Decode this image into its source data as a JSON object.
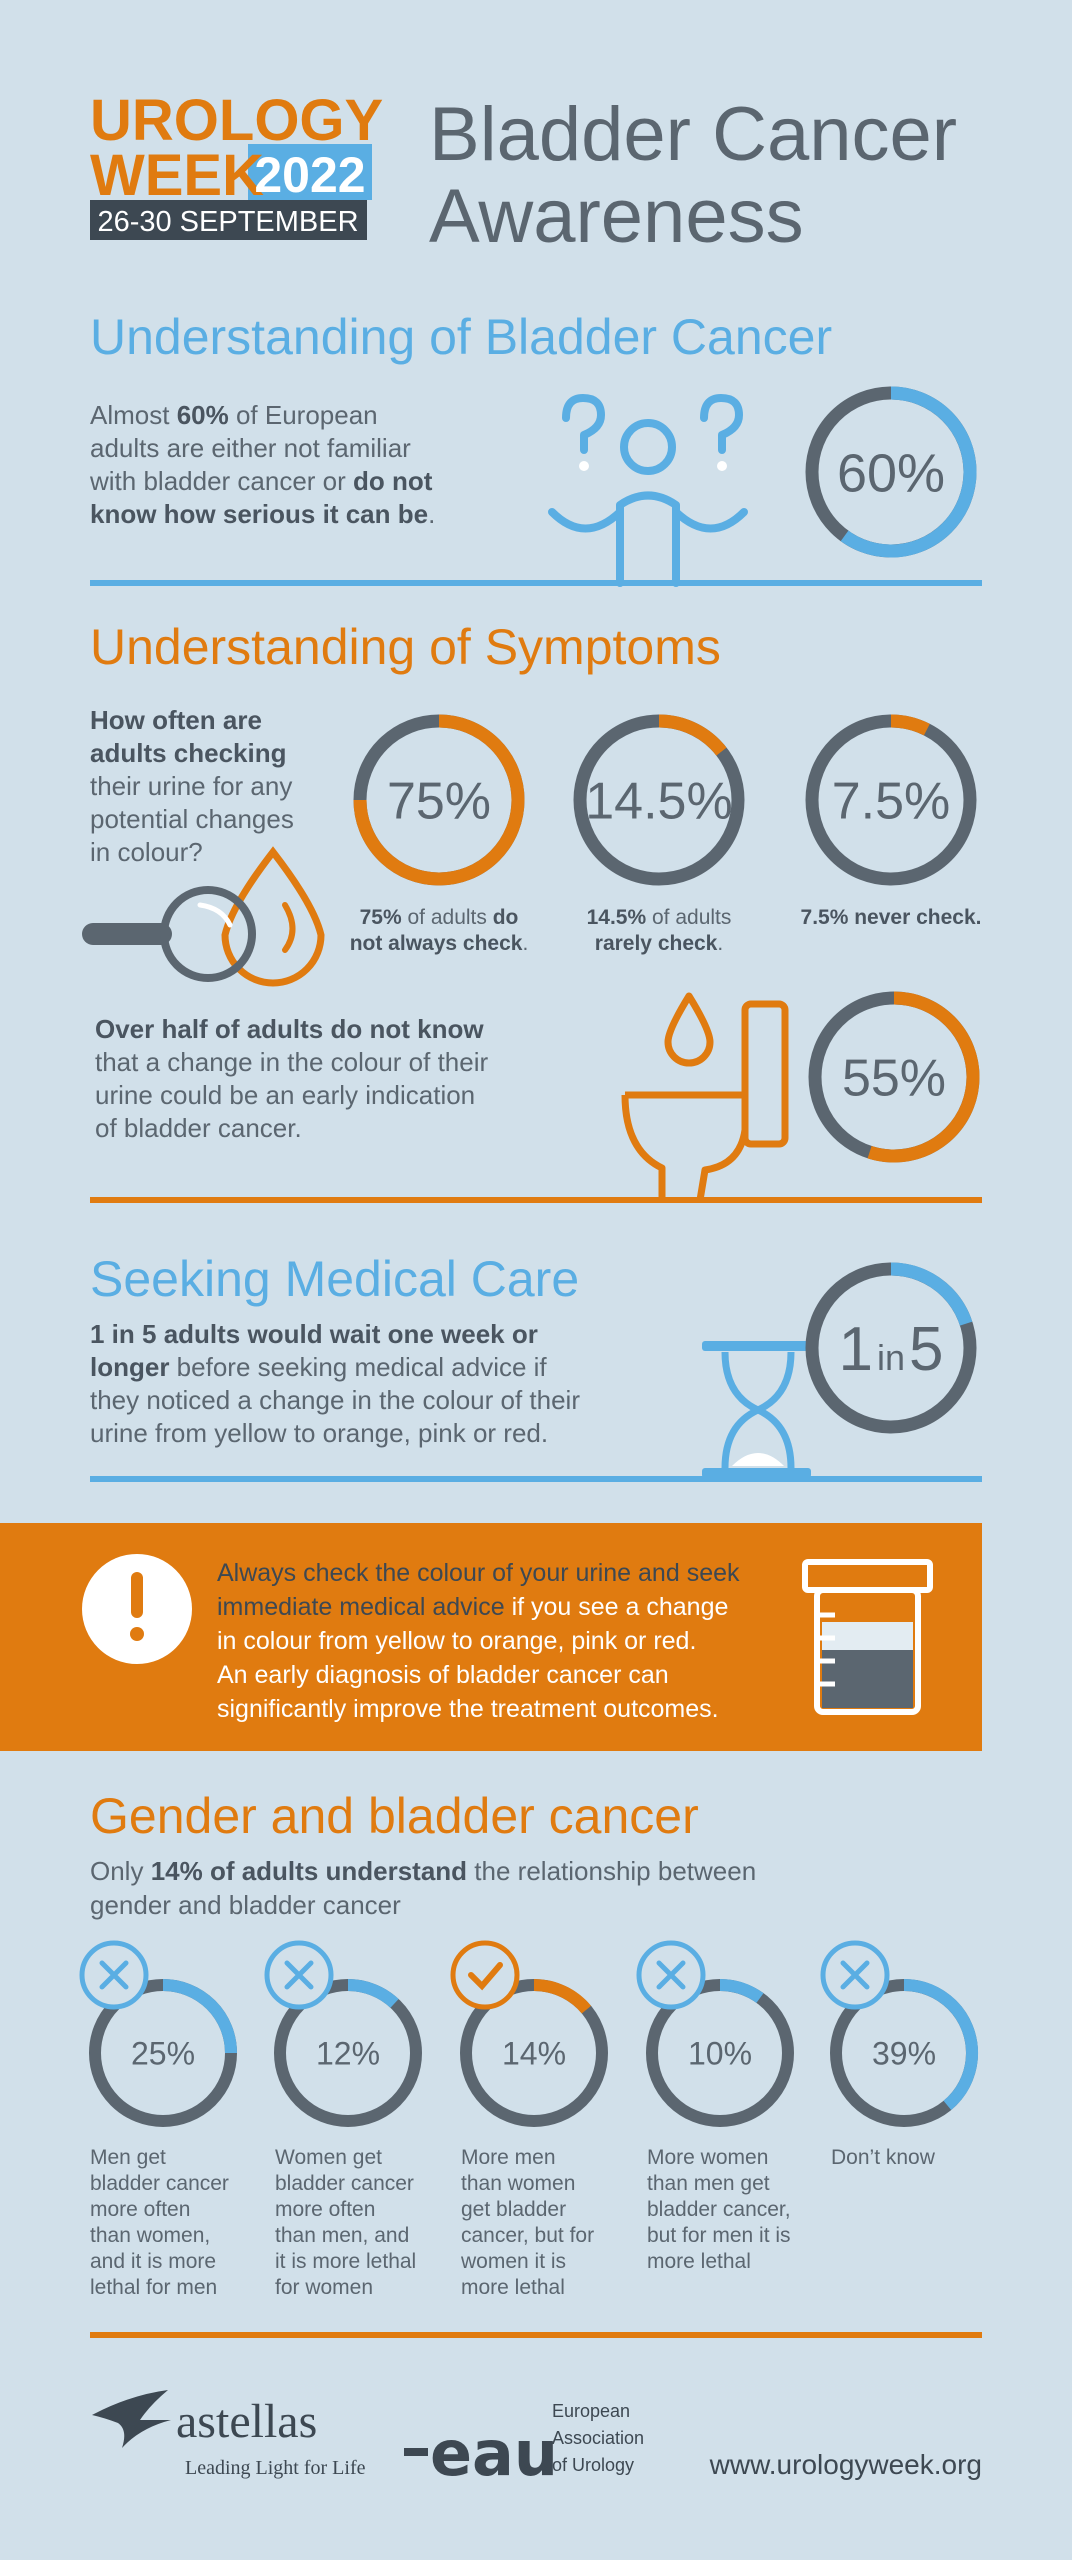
{
  "header": {
    "brand_line1": "UROLOGY",
    "brand_line2": "WEEK",
    "year": "2022",
    "dates": "26-30 SEPTEMBER",
    "title_lines": [
      "Bladder Cancer",
      "Awareness"
    ]
  },
  "understanding": {
    "heading": "Understanding of Bladder Cancer",
    "paragraph": [
      [
        {
          "text": "Almost "
        },
        {
          "text": "60%",
          "bold": true
        },
        {
          "text": " of European"
        }
      ],
      [
        {
          "text": "adults are either not familiar"
        }
      ],
      [
        {
          "text": "with bladder cancer or "
        },
        {
          "text": "do not",
          "bold": true
        }
      ],
      [
        {
          "text": "know how serious it can be",
          "bold": true
        },
        {
          "text": "."
        }
      ]
    ],
    "ring": {
      "value": 60,
      "label": "60%",
      "color": "#5aaee3"
    }
  },
  "symptoms": {
    "heading": "Understanding of Symptoms",
    "question": [
      [
        {
          "text": "How often are",
          "bold": true
        }
      ],
      [
        {
          "text": "adults checking",
          "bold": true
        }
      ],
      [
        {
          "text": "their urine for any"
        }
      ],
      [
        {
          "text": "potential changes"
        }
      ],
      [
        {
          "text": "in colour?"
        }
      ]
    ],
    "rings": [
      {
        "value": 75,
        "label": "75%",
        "color": "#e07b10",
        "caption": [
          [
            {
              "text": "75%",
              "bold": true
            },
            {
              "text": " of adults "
            },
            {
              "text": "do",
              "bold": true
            }
          ],
          [
            {
              "text": "not always check",
              "bold": true
            },
            {
              "text": "."
            }
          ]
        ]
      },
      {
        "value": 14.5,
        "label": "14.5%",
        "color": "#e07b10",
        "caption": [
          [
            {
              "text": "14.5%",
              "bold": true
            },
            {
              "text": " of adults"
            }
          ],
          [
            {
              "text": "rarely check",
              "bold": true
            },
            {
              "text": "."
            }
          ]
        ]
      },
      {
        "value": 7.5,
        "label": "7.5%",
        "color": "#e07b10",
        "caption": [
          [
            {
              "text": "7.5% never check.",
              "bold": true
            }
          ]
        ]
      }
    ],
    "paragraph": [
      [
        {
          "text": "Over half of adults do not know",
          "bold": true
        }
      ],
      [
        {
          "text": "that a change in the colour of their"
        }
      ],
      [
        {
          "text": "urine could be an early indication"
        }
      ],
      [
        {
          "text": "of bladder cancer."
        }
      ]
    ],
    "ring": {
      "value": 55,
      "label": "55%",
      "color": "#e07b10"
    }
  },
  "medical_care": {
    "heading": "Seeking Medical Care",
    "paragraph": [
      [
        {
          "text": "1 in 5 adults would wait one week or",
          "bold": true
        }
      ],
      [
        {
          "text": "longer",
          "bold": true
        },
        {
          "text": " before seeking medical advice if"
        }
      ],
      [
        {
          "text": "they noticed a change in the colour of their"
        }
      ],
      [
        {
          "text": "urine from yellow to orange, pink or red."
        }
      ]
    ],
    "ring": {
      "count": 1,
      "word": "in",
      "total": 5,
      "color": "#5aaee3"
    }
  },
  "advice": {
    "lines": [
      [
        {
          "text": "Always check the colour of your urine and seek",
          "color": "#3d4852"
        }
      ],
      [
        {
          "text": "immediate medical advice",
          "color": "#3d4852"
        },
        {
          "text": " if you see a change"
        }
      ],
      [
        {
          "text": "in colour from yellow to orange, pink or red."
        }
      ],
      [
        {
          "text": "An early diagnosis of bladder cancer can"
        }
      ],
      [
        {
          "text": "significantly improve the treatment outcomes."
        }
      ]
    ]
  },
  "gender": {
    "heading": "Gender and bladder cancer",
    "intro": [
      [
        {
          "text": "Only "
        },
        {
          "text": "14% of adults understand",
          "bold": true
        },
        {
          "text": " the relationship between"
        }
      ],
      [
        {
          "text": "gender and bladder cancer"
        }
      ]
    ],
    "items": [
      {
        "value": 25,
        "label": "25%",
        "icon": "cross",
        "color": "#5aaee3",
        "caption": [
          "Men get",
          "bladder cancer",
          "more often",
          "than women,",
          "and it is more",
          "lethal for men"
        ]
      },
      {
        "value": 12,
        "label": "12%",
        "icon": "cross",
        "color": "#5aaee3",
        "caption": [
          "Women get",
          "bladder cancer",
          "more often",
          "than men, and",
          "it is more lethal",
          "for women"
        ]
      },
      {
        "value": 14,
        "label": "14%",
        "icon": "check",
        "color": "#e07b10",
        "caption": [
          "More men",
          "than women",
          "get bladder",
          "cancer, but for",
          "women it is",
          "more lethal"
        ]
      },
      {
        "value": 10,
        "label": "10%",
        "icon": "cross",
        "color": "#5aaee3",
        "caption": [
          "More women",
          "than men get",
          "bladder cancer,",
          "but for men it is",
          "more lethal"
        ]
      },
      {
        "value": 39,
        "label": "39%",
        "icon": "cross",
        "color": "#5aaee3",
        "caption": [
          "Don’t know"
        ]
      }
    ]
  },
  "footer": {
    "astellas": "astellas",
    "tagline": "Leading Light for Life",
    "eau": "eau",
    "eau_name": [
      "European",
      "Association",
      "of Urology"
    ],
    "url": "www.urologyweek.org"
  }
}
